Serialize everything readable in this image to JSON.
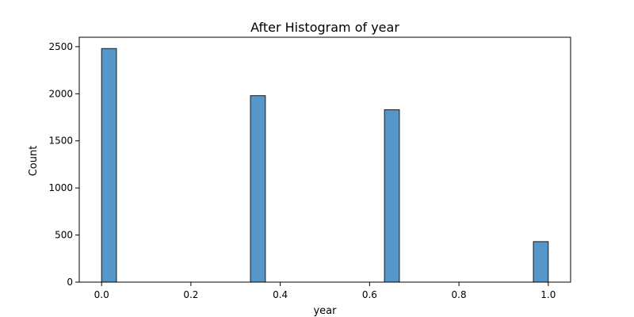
{
  "chart_data": {
    "type": "bar",
    "title": "After Histogram of year",
    "xlabel": "year",
    "ylabel": "Count",
    "xlim": [
      -0.05,
      1.05
    ],
    "ylim": [
      0,
      2600
    ],
    "xticks": [
      0.0,
      0.2,
      0.4,
      0.6,
      0.8,
      1.0
    ],
    "xtick_labels": [
      "0.0",
      "0.2",
      "0.4",
      "0.6",
      "0.8",
      "1.0"
    ],
    "yticks": [
      0,
      500,
      1000,
      1500,
      2000,
      2500
    ],
    "ytick_labels": [
      "0",
      "500",
      "1000",
      "1500",
      "2000",
      "2500"
    ],
    "grid": false,
    "bar_color": "#5497c8",
    "bar_edge_color": "#1a1a1a",
    "bars": [
      {
        "x0": 0.0,
        "x1": 0.0333,
        "count": 2480
      },
      {
        "x0": 0.3333,
        "x1": 0.3667,
        "count": 1980
      },
      {
        "x0": 0.6333,
        "x1": 0.6667,
        "count": 1830
      },
      {
        "x0": 0.9667,
        "x1": 1.0,
        "count": 430
      }
    ]
  }
}
